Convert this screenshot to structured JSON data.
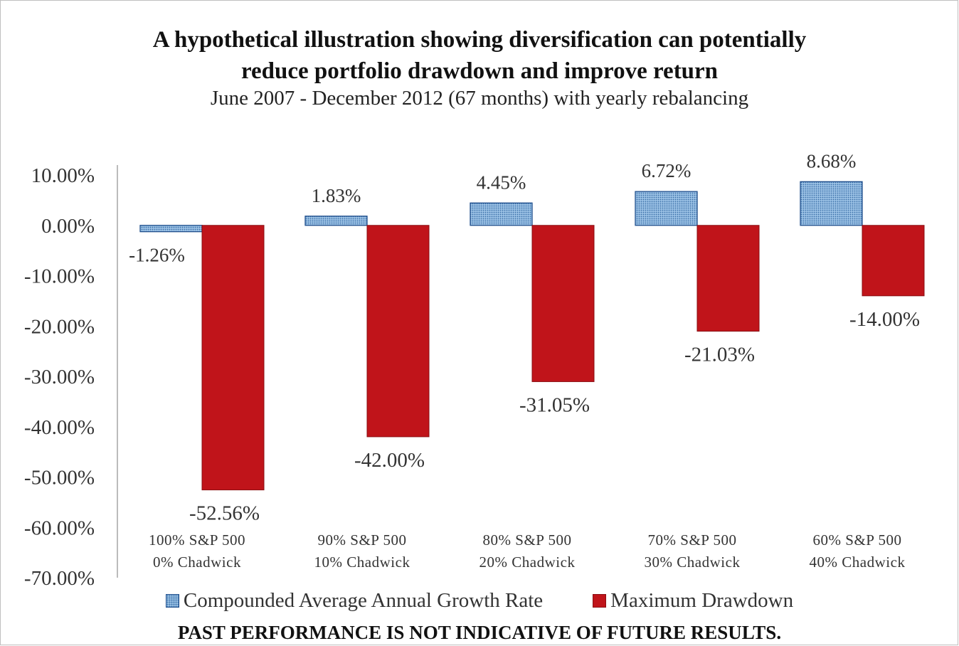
{
  "title_line1": "A hypothetical illustration showing diversification can potentially",
  "title_line2": "reduce portfolio drawdown and improve return",
  "subtitle": "June 2007 - December 2012 (67 months) with yearly rebalancing",
  "footer": "PAST PERFORMANCE IS NOT INDICATIVE OF FUTURE RESULTS.",
  "colors": {
    "cagr_fill": "#9cc3e6",
    "cagr_border": "#1f4e8c",
    "drawdown_fill": "#c0141a",
    "text": "#333333"
  },
  "chart_data": {
    "type": "bar",
    "title": "A hypothetical illustration showing diversification can potentially reduce portfolio drawdown and improve return",
    "subtitle": "June 2007 - December 2012 (67 months) with yearly rebalancing",
    "categories": [
      [
        "100% S&P 500",
        "0% Chadwick"
      ],
      [
        "90% S&P 500",
        "10% Chadwick"
      ],
      [
        "80% S&P 500",
        "20% Chadwick"
      ],
      [
        "70% S&P 500",
        "30% Chadwick"
      ],
      [
        "60% S&P 500",
        "40% Chadwick"
      ]
    ],
    "series": [
      {
        "name": "Compounded Average Annual Growth Rate",
        "values": [
          -1.26,
          1.83,
          4.45,
          6.72,
          8.68
        ],
        "labels": [
          "-1.26%",
          "1.83%",
          "4.45%",
          "6.72%",
          "8.68%"
        ]
      },
      {
        "name": "Maximum Drawdown",
        "values": [
          -52.56,
          -42.0,
          -31.05,
          -21.03,
          -14.0
        ],
        "labels": [
          "-52.56%",
          "-42.00%",
          "-31.05%",
          "-21.03%",
          "-14.00%"
        ]
      }
    ],
    "y_ticks": [
      10,
      0,
      -10,
      -20,
      -30,
      -40,
      -50,
      -60,
      -70
    ],
    "y_tick_labels": [
      "10.00%",
      "0.00%",
      "-10.00%",
      "-20.00%",
      "-30.00%",
      "-40.00%",
      "-50.00%",
      "-60.00%",
      "-70.00%"
    ],
    "ylim": [
      -70,
      10
    ],
    "grid": false,
    "legend_position": "bottom"
  }
}
